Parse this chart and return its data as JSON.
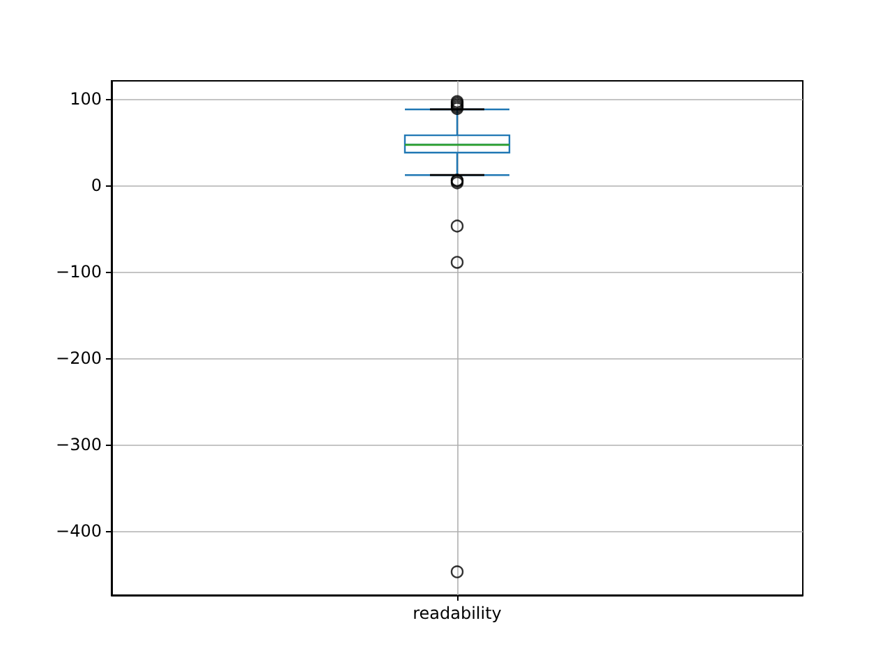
{
  "chart_data": {
    "type": "box",
    "categories": [
      "readability"
    ],
    "series": [
      {
        "color": "#1f77b4",
        "boxes": [
          {
            "low": 12,
            "q1": 38,
            "median": 47,
            "q3": 58,
            "high": 88,
            "outliers": [
              89,
              91,
              93,
              95,
              97,
              3,
              5,
              6,
              -47,
              -89,
              -447
            ]
          }
        ]
      }
    ],
    "ylim": [
      -474,
      121
    ],
    "yticks": [
      -400,
      -300,
      -200,
      -100,
      0,
      100
    ],
    "grid": true,
    "marker": "circle"
  }
}
